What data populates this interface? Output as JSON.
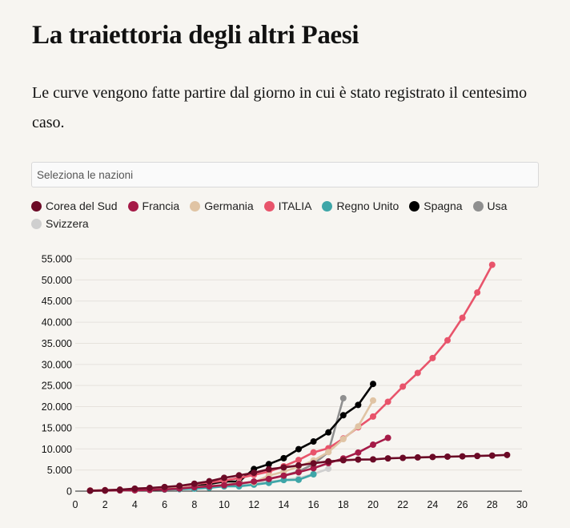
{
  "title": "La traiettoria degli altri Paesi",
  "subtitle": "Le curve vengono fatte partire dal giorno in cui è stato registrato il centesimo caso.",
  "selector": {
    "placeholder": "Seleziona le nazioni"
  },
  "chart_data": {
    "type": "line",
    "title": "",
    "xlabel": "",
    "ylabel": "",
    "xlim": [
      0,
      30
    ],
    "ylim": [
      0,
      55000
    ],
    "x_ticks": [
      0,
      2,
      4,
      6,
      8,
      10,
      12,
      14,
      16,
      18,
      20,
      22,
      24,
      26,
      28,
      30
    ],
    "y_ticks": [
      0,
      5000,
      10000,
      15000,
      20000,
      25000,
      30000,
      35000,
      40000,
      45000,
      50000,
      55000
    ],
    "x_tick_labels": [
      "0",
      "2",
      "4",
      "6",
      "8",
      "10",
      "12",
      "14",
      "16",
      "18",
      "20",
      "22",
      "24",
      "26",
      "28",
      "30"
    ],
    "y_tick_labels": [
      "0",
      "5.000",
      "10.000",
      "15.000",
      "20.000",
      "25.000",
      "30.000",
      "35.000",
      "40.000",
      "45.000",
      "50.000",
      "55.000"
    ],
    "grid": "horizontal",
    "legend_position": "top",
    "series": [
      {
        "name": "Corea del Sud",
        "color": "#6b0a26",
        "x": [
          1,
          2,
          3,
          4,
          5,
          6,
          7,
          8,
          9,
          10,
          11,
          12,
          13,
          14,
          15,
          16,
          17,
          18,
          19,
          20,
          21,
          22,
          23,
          24,
          25,
          26,
          27,
          28,
          29
        ],
        "y": [
          104,
          204,
          346,
          602,
          763,
          977,
          1261,
          1766,
          2337,
          3150,
          3736,
          4335,
          5186,
          5621,
          6088,
          6593,
          7041,
          7314,
          7478,
          7513,
          7755,
          7869,
          7979,
          8086,
          8162,
          8236,
          8320,
          8413,
          8565
        ]
      },
      {
        "name": "Francia",
        "color": "#a51a47",
        "x": [
          1,
          2,
          3,
          4,
          5,
          6,
          7,
          8,
          9,
          10,
          11,
          12,
          13,
          14,
          15,
          16,
          17,
          18,
          19,
          20,
          21
        ],
        "y": [
          100,
          130,
          191,
          212,
          285,
          423,
          613,
          949,
          1126,
          1412,
          1784,
          2281,
          2876,
          3661,
          4499,
          5423,
          6633,
          7730,
          9134,
          10995,
          12612
        ]
      },
      {
        "name": "Germania",
        "color": "#e0c4a4",
        "x": [
          1,
          2,
          3,
          4,
          5,
          6,
          7,
          8,
          9,
          10,
          11,
          12,
          13,
          14,
          15,
          16,
          17,
          18,
          19,
          20
        ],
        "y": [
          130,
          159,
          196,
          262,
          482,
          670,
          799,
          1040,
          1176,
          1457,
          1908,
          2078,
          3675,
          4585,
          5795,
          7272,
          9257,
          12327,
          15320,
          21463
        ]
      },
      {
        "name": "ITALIA",
        "color": "#e8546b",
        "x": [
          1,
          2,
          3,
          4,
          5,
          6,
          7,
          8,
          9,
          10,
          11,
          12,
          13,
          14,
          15,
          16,
          17,
          18,
          19,
          20,
          21,
          22,
          23,
          24,
          25,
          26,
          27,
          28
        ],
        "y": [
          155,
          229,
          322,
          453,
          655,
          888,
          1128,
          1694,
          2036,
          2502,
          3089,
          3858,
          4636,
          5883,
          7375,
          9172,
          10149,
          12462,
          15113,
          17660,
          21157,
          24747,
          27980,
          31506,
          35713,
          41035,
          47021,
          53578
        ]
      },
      {
        "name": "Regno Unito",
        "color": "#3ea6a8",
        "x": [
          1,
          2,
          3,
          4,
          5,
          6,
          7,
          8,
          9,
          10,
          11,
          12,
          13,
          14,
          15,
          16
        ],
        "y": [
          115,
          163,
          206,
          273,
          321,
          373,
          460,
          594,
          798,
          1140,
          1140,
          1543,
          1950,
          2626,
          2689,
          3983
        ]
      },
      {
        "name": "Spagna",
        "color": "#000000",
        "x": [
          1,
          2,
          3,
          4,
          5,
          6,
          7,
          8,
          9,
          10,
          11,
          12,
          13,
          14,
          15,
          16,
          17,
          18,
          19,
          20
        ],
        "y": [
          120,
          165,
          222,
          259,
          400,
          500,
          673,
          1073,
          1695,
          2277,
          2277,
          5232,
          6391,
          7798,
          9942,
          11748,
          13910,
          17963,
          20410,
          25374
        ]
      },
      {
        "name": "Usa",
        "color": "#8f8f8f",
        "x": [
          1,
          2,
          3,
          4,
          5,
          6,
          7,
          8,
          9,
          10,
          11,
          12,
          13,
          14,
          15,
          16,
          17,
          18
        ],
        "y": [
          100,
          124,
          158,
          221,
          319,
          435,
          541,
          704,
          994,
          1301,
          1697,
          2247,
          2943,
          3680,
          4663,
          6411,
          9259,
          22000
        ]
      },
      {
        "name": "Svizzera",
        "color": "#cfcfcf",
        "x": [
          1,
          2,
          3,
          4,
          5,
          6,
          7,
          8,
          9,
          10,
          11,
          12,
          13,
          14,
          15,
          16,
          17
        ],
        "y": [
          100,
          114,
          214,
          268,
          337,
          374,
          491,
          652,
          868,
          1139,
          1359,
          2200,
          2200,
          2700,
          3028,
          4075,
          5294
        ]
      }
    ]
  }
}
